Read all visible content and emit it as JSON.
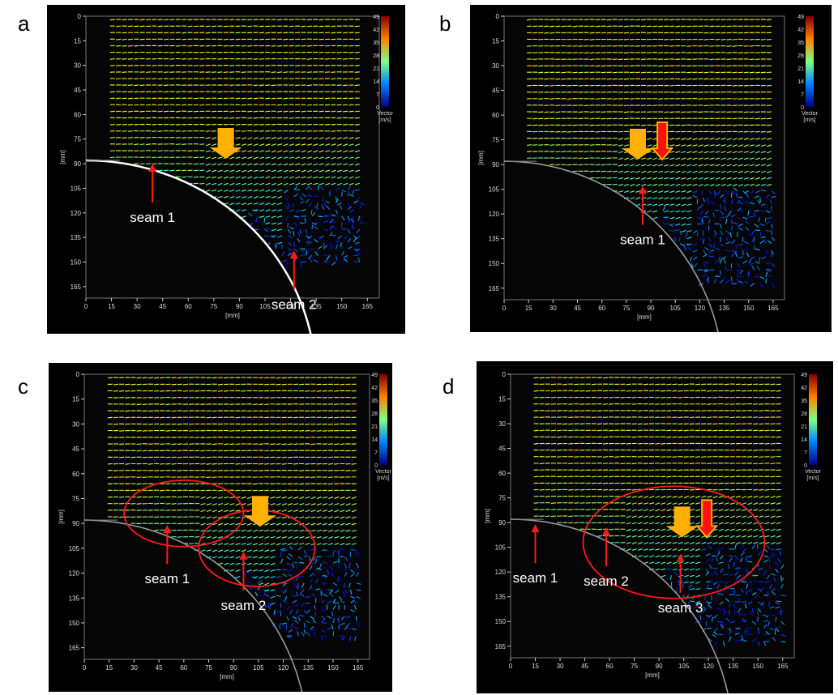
{
  "panels": [
    {
      "label": "a",
      "chart_data": {
        "type": "vector_field",
        "xlabel": "[mm]",
        "ylabel": "[mm]",
        "xticks": [
          0,
          15,
          30,
          45,
          60,
          75,
          90,
          105,
          120,
          135,
          150,
          165
        ],
        "yticks": [
          0,
          15,
          30,
          45,
          60,
          75,
          90,
          105,
          120,
          135,
          150,
          165
        ],
        "colorbar": {
          "ticks": [
            0,
            7,
            14,
            21,
            28,
            35,
            42,
            49
          ],
          "label": [
            "Vector",
            "[m/s]"
          ]
        },
        "seams": [
          {
            "label": "seam 1",
            "arrow_xy": [
              39,
              89
            ]
          },
          {
            "label": "seam 2",
            "arrow_xy": [
              122,
              142
            ]
          }
        ],
        "flow_arrows": [
          {
            "color": "#ffb000",
            "xy": [
              82,
              86
            ]
          }
        ],
        "circles": []
      }
    },
    {
      "label": "b",
      "chart_data": {
        "type": "vector_field",
        "xlabel": "[mm]",
        "ylabel": "[mm]",
        "xticks": [
          0,
          15,
          30,
          45,
          60,
          75,
          90,
          105,
          120,
          135,
          150,
          165
        ],
        "yticks": [
          0,
          15,
          30,
          45,
          60,
          75,
          90,
          105,
          120,
          135,
          150,
          165
        ],
        "colorbar": {
          "ticks": [
            0,
            7,
            14,
            21,
            28,
            35,
            42,
            49
          ],
          "label": [
            "Vector",
            "[m/s]"
          ]
        },
        "seams": [
          {
            "label": "seam 1",
            "arrow_xy": [
              85,
              102
            ]
          }
        ],
        "flow_arrows": [
          {
            "color": "#ffb000",
            "xy": [
              82,
              86
            ]
          },
          {
            "color": "#ff1010",
            "xy": [
              97,
              86
            ]
          }
        ],
        "circles": []
      }
    },
    {
      "label": "c",
      "chart_data": {
        "type": "vector_field",
        "xlabel": "[mm]",
        "ylabel": "[mm]",
        "xticks": [
          0,
          15,
          30,
          45,
          60,
          75,
          90,
          105,
          120,
          135,
          150,
          165
        ],
        "yticks": [
          0,
          15,
          30,
          45,
          60,
          75,
          90,
          105,
          120,
          135,
          150,
          165
        ],
        "colorbar": {
          "ticks": [
            0,
            7,
            14,
            21,
            28,
            35,
            42,
            49
          ],
          "label": [
            "Vector",
            "[m/s]"
          ]
        },
        "seams": [
          {
            "label": "seam 1",
            "arrow_xy": [
              50,
              90
            ]
          },
          {
            "label": "seam 2",
            "arrow_xy": [
              96,
              106
            ]
          }
        ],
        "flow_arrows": [
          {
            "color": "#ffb000",
            "xy": [
              106,
              91
            ]
          }
        ],
        "circles": [
          {
            "cx": 60,
            "cy": 84,
            "rx": 36,
            "ry": 20
          },
          {
            "cx": 104,
            "cy": 105,
            "rx": 35,
            "ry": 23
          }
        ]
      }
    },
    {
      "label": "d",
      "chart_data": {
        "type": "vector_field",
        "xlabel": "[mm]",
        "ylabel": "[mm]",
        "xticks": [
          0,
          15,
          30,
          45,
          60,
          75,
          90,
          105,
          120,
          135,
          150,
          165
        ],
        "yticks": [
          0,
          15,
          30,
          45,
          60,
          75,
          90,
          105,
          120,
          135,
          150,
          165
        ],
        "colorbar": {
          "ticks": [
            0,
            7,
            14,
            21,
            28,
            35,
            42,
            49
          ],
          "label": [
            "Vector",
            "[m/s]"
          ]
        },
        "seams": [
          {
            "label": "seam 1",
            "arrow_xy": [
              15,
              90
            ]
          },
          {
            "label": "seam 2",
            "arrow_xy": [
              58,
              92
            ]
          },
          {
            "label": "seam 3",
            "arrow_xy": [
              103,
              108
            ]
          }
        ],
        "flow_arrows": [
          {
            "color": "#ffb000",
            "xy": [
              104,
              98
            ]
          },
          {
            "color": "#ff1010",
            "xy": [
              119,
              98
            ]
          }
        ],
        "circles": [
          {
            "cx": 99,
            "cy": 102,
            "rx": 55,
            "ry": 34
          }
        ]
      }
    }
  ]
}
